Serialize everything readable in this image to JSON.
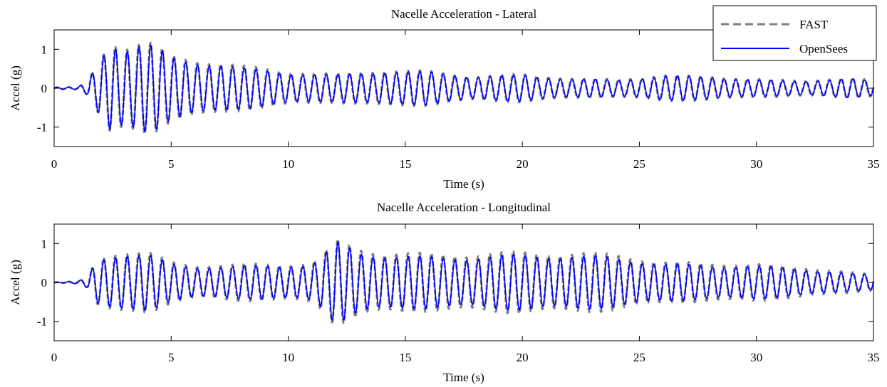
{
  "chart_data": [
    {
      "type": "line",
      "title": "Nacelle Acceleration - Lateral",
      "xlabel": "Time (s)",
      "ylabel": "Accel (g)",
      "xlim": [
        0,
        35
      ],
      "ylim": [
        -1.5,
        1.5
      ],
      "xticks": [
        "0",
        "5",
        "10",
        "15",
        "20",
        "25",
        "30",
        "35"
      ],
      "yticks": [
        "-1",
        "0",
        "1"
      ],
      "grid": false,
      "legend": "top-right",
      "series": [
        {
          "name": "FAST",
          "color": "#808080",
          "dash": "dashed",
          "envelope": {
            "t": [
              0,
              1.0,
              1.4,
              1.8,
              2.4,
              3.0,
              3.8,
              4.2,
              5.0,
              6.0,
              7.0,
              8.0,
              10.0,
              12.0,
              14.0,
              16.0,
              18.0,
              20.0,
              22.0,
              24.0,
              26.0,
              28.0,
              30.0,
              32.0,
              34.0,
              35.0
            ],
            "amp": [
              0.02,
              0.03,
              0.15,
              0.55,
              1.2,
              1.05,
              1.15,
              1.1,
              0.8,
              0.7,
              0.65,
              0.55,
              0.42,
              0.35,
              0.45,
              0.42,
              0.3,
              0.35,
              0.25,
              0.22,
              0.32,
              0.3,
              0.22,
              0.2,
              0.25,
              0.2
            ]
          },
          "period": 0.5
        },
        {
          "name": "OpenSees",
          "color": "#0000ff",
          "dash": "solid",
          "envelope": {
            "t": [
              0,
              1.0,
              1.4,
              1.8,
              2.4,
              3.0,
              3.8,
              4.2,
              5.0,
              6.0,
              7.0,
              8.0,
              10.0,
              12.0,
              14.0,
              16.0,
              18.0,
              20.0,
              22.0,
              24.0,
              26.0,
              28.0,
              30.0,
              32.0,
              34.0,
              35.0
            ],
            "amp": [
              0.02,
              0.03,
              0.15,
              0.55,
              1.15,
              1.0,
              1.1,
              1.05,
              0.75,
              0.65,
              0.6,
              0.5,
              0.38,
              0.32,
              0.42,
              0.4,
              0.28,
              0.32,
              0.23,
              0.2,
              0.3,
              0.28,
              0.2,
              0.18,
              0.23,
              0.18
            ]
          },
          "period": 0.5
        }
      ]
    },
    {
      "type": "line",
      "title": "Nacelle Acceleration - Longitudinal",
      "xlabel": "Time (s)",
      "ylabel": "Accel (g)",
      "xlim": [
        0,
        35
      ],
      "ylim": [
        -1.5,
        1.5
      ],
      "xticks": [
        "0",
        "5",
        "10",
        "15",
        "20",
        "25",
        "30",
        "35"
      ],
      "yticks": [
        "-1",
        "0",
        "1"
      ],
      "grid": false,
      "series": [
        {
          "name": "FAST",
          "color": "#808080",
          "dash": "dashed",
          "envelope": {
            "t": [
              0,
              1.0,
              1.4,
              1.8,
              2.4,
              3.0,
              4.0,
              5.0,
              6.0,
              8.0,
              10.0,
              11.0,
              11.5,
              12.0,
              13.0,
              14.0,
              16.0,
              18.0,
              20.0,
              22.0,
              24.0,
              26.0,
              28.0,
              30.0,
              32.0,
              34.0,
              35.0
            ],
            "amp": [
              0.0,
              0.03,
              0.12,
              0.55,
              0.72,
              0.78,
              0.75,
              0.5,
              0.42,
              0.45,
              0.45,
              0.5,
              0.7,
              1.05,
              0.85,
              0.75,
              0.7,
              0.7,
              0.75,
              0.72,
              0.7,
              0.5,
              0.48,
              0.45,
              0.38,
              0.25,
              0.2
            ]
          },
          "period": 0.5
        },
        {
          "name": "OpenSees",
          "color": "#0000ff",
          "dash": "solid",
          "envelope": {
            "t": [
              0,
              1.0,
              1.4,
              1.8,
              2.4,
              3.0,
              4.0,
              5.0,
              6.0,
              8.0,
              10.0,
              11.0,
              11.5,
              12.0,
              13.0,
              14.0,
              16.0,
              18.0,
              20.0,
              22.0,
              24.0,
              26.0,
              28.0,
              30.0,
              32.0,
              34.0,
              35.0
            ],
            "amp": [
              0.0,
              0.03,
              0.12,
              0.52,
              0.68,
              0.72,
              0.7,
              0.45,
              0.38,
              0.4,
              0.42,
              0.45,
              0.65,
              1.0,
              0.75,
              0.68,
              0.62,
              0.62,
              0.68,
              0.65,
              0.62,
              0.45,
              0.42,
              0.4,
              0.33,
              0.22,
              0.18
            ]
          },
          "period": 0.5
        }
      ]
    }
  ]
}
